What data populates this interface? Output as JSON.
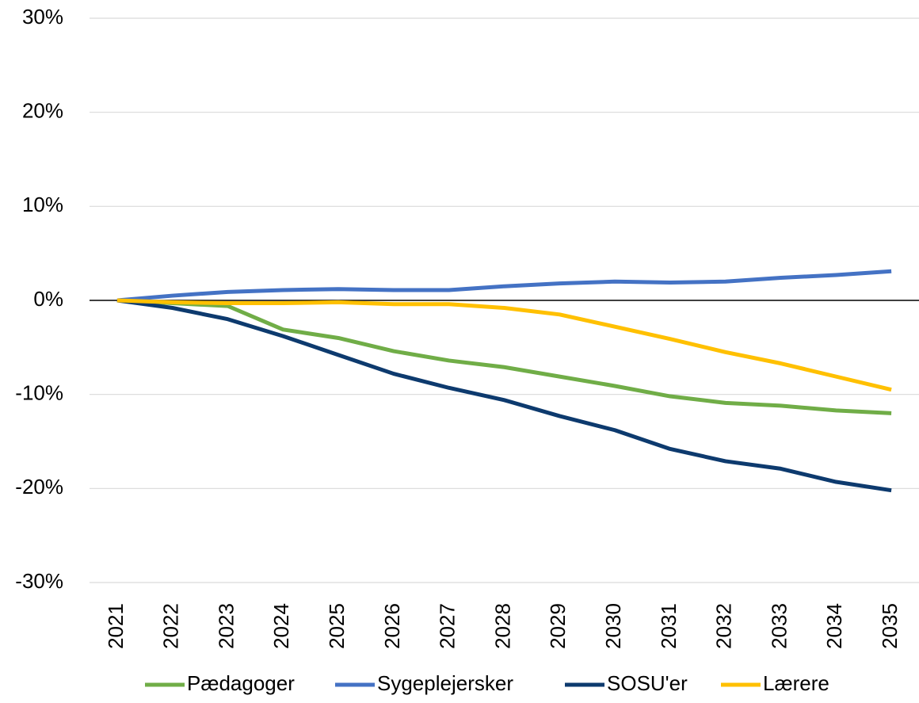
{
  "chart_data": {
    "type": "line",
    "categories": [
      "2021",
      "2022",
      "2023",
      "2024",
      "2025",
      "2026",
      "2027",
      "2028",
      "2029",
      "2030",
      "2031",
      "2032",
      "2033",
      "2034",
      "2035"
    ],
    "series": [
      {
        "name": "Pædagoger",
        "color": "#70ad47",
        "values": [
          0,
          -0.3,
          -0.6,
          -3.1,
          -4.0,
          -5.4,
          -6.4,
          -7.1,
          -8.1,
          -9.1,
          -10.2,
          -10.9,
          -11.2,
          -11.7,
          -12.0
        ]
      },
      {
        "name": "Sygeplejersker",
        "color": "#4472c4",
        "values": [
          0,
          0.5,
          0.9,
          1.1,
          1.2,
          1.1,
          1.1,
          1.5,
          1.8,
          2.0,
          1.9,
          2.0,
          2.4,
          2.7,
          3.1
        ]
      },
      {
        "name": "SOSU'er",
        "color": "#0d3a6e",
        "values": [
          0,
          -0.8,
          -2.0,
          -3.8,
          -5.8,
          -7.8,
          -9.3,
          -10.6,
          -12.3,
          -13.8,
          -15.8,
          -17.1,
          -17.9,
          -19.3,
          -20.2
        ]
      },
      {
        "name": "Lærere",
        "color": "#ffc000",
        "values": [
          0,
          -0.2,
          -0.3,
          -0.3,
          -0.2,
          -0.4,
          -0.4,
          -0.8,
          -1.5,
          -2.8,
          -4.1,
          -5.5,
          -6.7,
          -8.1,
          -9.5
        ]
      }
    ],
    "ylim": [
      -30,
      30
    ],
    "yticks": [
      {
        "value": -30,
        "label": "-30%"
      },
      {
        "value": -20,
        "label": "-20%"
      },
      {
        "value": -10,
        "label": "-10%"
      },
      {
        "value": 0,
        "label": "0%"
      },
      {
        "value": 10,
        "label": "10%"
      },
      {
        "value": 20,
        "label": "20%"
      },
      {
        "value": 30,
        "label": "30%"
      }
    ],
    "grid": true,
    "legend": "bottom"
  }
}
